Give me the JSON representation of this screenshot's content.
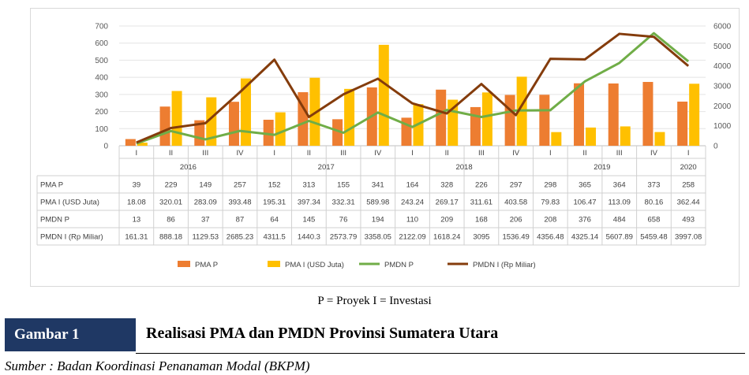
{
  "colors": {
    "pma_p": "#ed7d31",
    "pma_i": "#ffc000",
    "pmdn_p": "#70ad47",
    "pmdn_i": "#843c0c"
  },
  "chart_data": {
    "type": "bar",
    "categories": [
      "I",
      "II",
      "III",
      "IV",
      "I",
      "II",
      "III",
      "IV",
      "I",
      "II",
      "III",
      "IV",
      "I",
      "II",
      "III",
      "IV",
      "I"
    ],
    "years": [
      {
        "label": "2016",
        "span": 4
      },
      {
        "label": "2017",
        "span": 4
      },
      {
        "label": "2018",
        "span": 4
      },
      {
        "label": "2019",
        "span": 4
      },
      {
        "label": "2020",
        "span": 1
      }
    ],
    "y_left": {
      "ylim": [
        0,
        700
      ],
      "ticks": [
        "0",
        "100",
        "200",
        "300",
        "400",
        "500",
        "600",
        "700"
      ]
    },
    "y_right": {
      "ylim": [
        0,
        6000
      ],
      "ticks": [
        "0",
        "1000",
        "2000",
        "3000",
        "4000",
        "5000",
        "6000"
      ]
    },
    "series": [
      {
        "name": "PMA P",
        "type": "bar",
        "axis": "left",
        "values": [
          39,
          229,
          149,
          257,
          152,
          313,
          155,
          341,
          164,
          328,
          226,
          297,
          298,
          365,
          364,
          373,
          258
        ],
        "labels": [
          "39",
          "229",
          "149",
          "257",
          "152",
          "313",
          "155",
          "341",
          "164",
          "328",
          "226",
          "297",
          "298",
          "365",
          "364",
          "373",
          "258"
        ]
      },
      {
        "name": "PMA I (USD Juta)",
        "table_name": "PMA I (USD Juta)",
        "type": "bar",
        "axis": "left",
        "values": [
          18.08,
          320.01,
          283.09,
          393.48,
          195.31,
          397.34,
          332.31,
          589.98,
          243.24,
          269.17,
          311.61,
          403.58,
          79.83,
          106.47,
          113.09,
          80.16,
          362.44
        ],
        "labels": [
          "18.08",
          "320.01",
          "283.09",
          "393.48",
          "195.31",
          "397.34",
          "332.31",
          "589.98",
          "243.24",
          "269.17",
          "311.61",
          "403.58",
          "79.83",
          "106.47",
          "113.09",
          "80.16",
          "362.44"
        ]
      },
      {
        "name": "PMDN P",
        "type": "line",
        "axis": "left",
        "values": [
          13,
          86,
          37,
          87,
          64,
          145,
          76,
          194,
          110,
          209,
          168,
          206,
          208,
          376,
          484,
          658,
          493
        ],
        "labels": [
          "13",
          "86",
          "37",
          "87",
          "64",
          "145",
          "76",
          "194",
          "110",
          "209",
          "168",
          "206",
          "208",
          "376",
          "484",
          "658",
          "493"
        ]
      },
      {
        "name": "PMDN I (Rp Miliar)",
        "table_name": "PMDN I (Rp Miliar)",
        "type": "line",
        "axis": "right",
        "values": [
          161.31,
          888.18,
          1129.53,
          2685.23,
          4311.5,
          1440.3,
          2573.79,
          3358.05,
          2122.09,
          1618.24,
          3095,
          1536.49,
          4356.48,
          4325.14,
          5607.89,
          5459.48,
          3997.08
        ],
        "labels": [
          "161.31",
          "888.18",
          "1129.53",
          "2685.23",
          "4311.5",
          "1440.3",
          "2573.79",
          "3358.05",
          "2122.09",
          "1618.24",
          "3095",
          "1536.49",
          "4356.48",
          "4325.14",
          "5607.89",
          "5459.48",
          "3997.08"
        ]
      }
    ]
  },
  "note": "P = Proyek   I = Investasi",
  "figure_label": "Gambar 1",
  "figure_title": "Realisasi PMA dan PMDN Provinsi Sumatera Utara",
  "source": "Sumber : Badan Koordinasi Penanaman Modal (BKPM)"
}
